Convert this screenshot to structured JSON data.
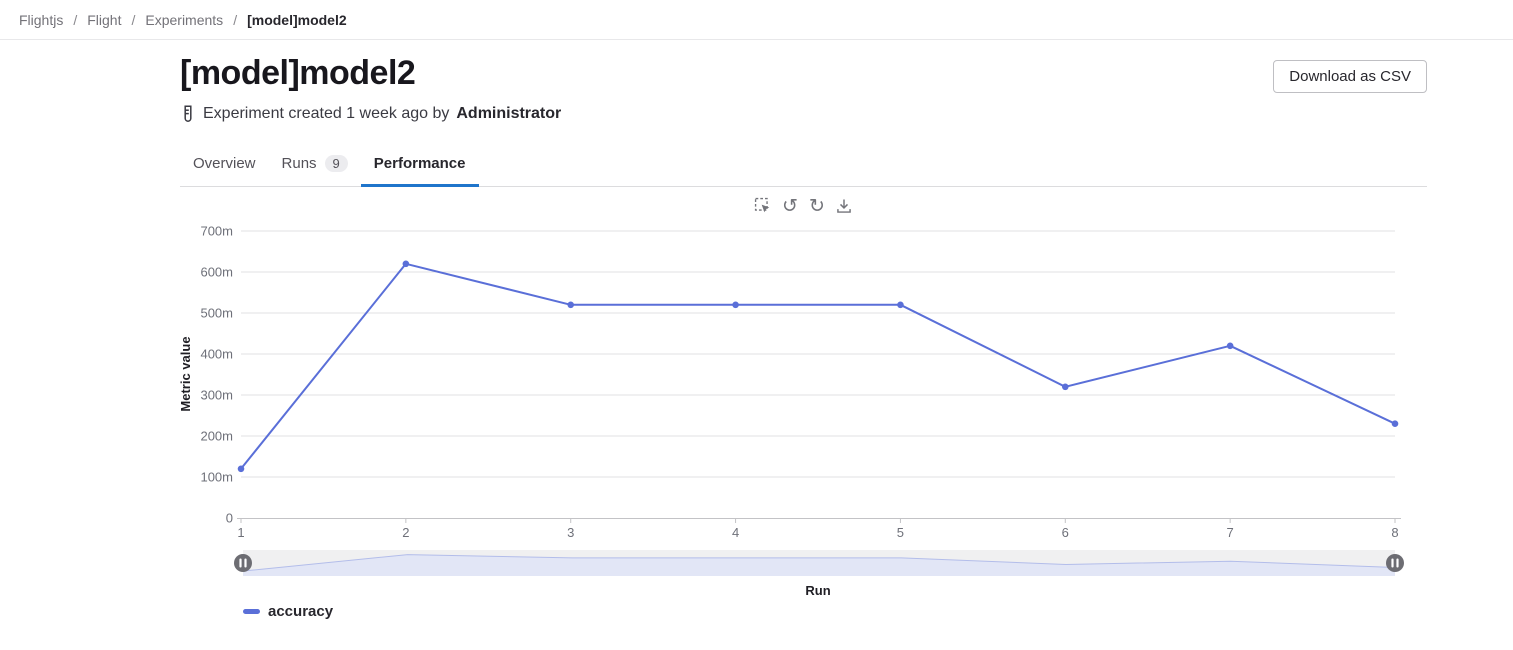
{
  "breadcrumb": {
    "separator": "/",
    "items": [
      {
        "label": "Flightjs"
      },
      {
        "label": "Flight"
      },
      {
        "label": "Experiments"
      },
      {
        "label": "[model]model2"
      }
    ]
  },
  "header": {
    "title": "[model]model2",
    "download_button": "Download as CSV",
    "meta_prefix": "Experiment created 1 week ago by",
    "meta_author": "Administrator"
  },
  "tabs": [
    {
      "label": "Overview"
    },
    {
      "label": "Runs",
      "badge": "9"
    },
    {
      "label": "Performance",
      "active": true
    }
  ],
  "toolbar": {
    "icons": [
      "zoom-select",
      "undo",
      "redo",
      "download"
    ],
    "undo_glyph": "↺",
    "redo_glyph": "↻"
  },
  "chart_data": {
    "type": "line",
    "title": "",
    "x": [
      1,
      2,
      3,
      4,
      5,
      6,
      7,
      8
    ],
    "series": [
      {
        "name": "accuracy",
        "values": [
          0.12,
          0.62,
          0.52,
          0.52,
          0.52,
          0.32,
          0.42,
          0.23
        ],
        "color": "#5a6fd8"
      }
    ],
    "xlabel": "Run",
    "ylabel": "Metric value",
    "ylim": [
      0,
      0.7
    ],
    "y_ticks": [
      {
        "value": 0,
        "label": "0"
      },
      {
        "value": 0.1,
        "label": "100m"
      },
      {
        "value": 0.2,
        "label": "200m"
      },
      {
        "value": 0.3,
        "label": "300m"
      },
      {
        "value": 0.4,
        "label": "400m"
      },
      {
        "value": 0.5,
        "label": "500m"
      },
      {
        "value": 0.6,
        "label": "600m"
      },
      {
        "value": 0.7,
        "label": "700m"
      }
    ],
    "grid": "horizontal-only",
    "legend_position": "bottom-left",
    "minimap": {
      "present": true,
      "bg": "#f0f0f1",
      "area_fill": "#e2e6f6",
      "area_stroke": "#b3bdea",
      "handle_color": "#6d6d73"
    }
  },
  "colors": {
    "accent_blue": "#1f75cb",
    "line_blue": "#5a6fd8",
    "grid_gray": "#e1e1e3",
    "axis_gray": "#c3c3c6",
    "tick_text": "#6e7079"
  }
}
